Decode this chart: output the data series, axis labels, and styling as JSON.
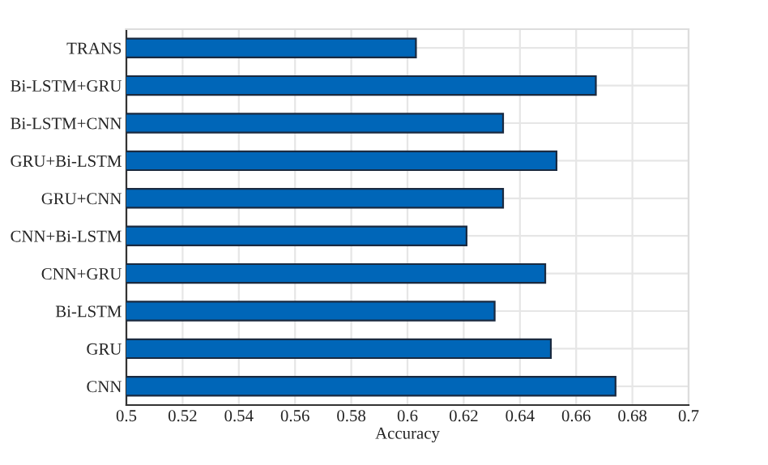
{
  "chart_data": {
    "type": "bar",
    "orientation": "horizontal",
    "xlabel": "Accuracy",
    "categories": [
      "TRANS",
      "Bi-LSTM+GRU",
      "Bi-LSTM+CNN",
      "GRU+Bi-LSTM",
      "GRU+CNN",
      "CNN+Bi-LSTM",
      "CNN+GRU",
      "Bi-LSTM",
      "GRU",
      "CNN"
    ],
    "values": [
      0.603,
      0.667,
      0.634,
      0.653,
      0.634,
      0.621,
      0.649,
      0.631,
      0.651,
      0.674
    ],
    "color": "#0066b8",
    "xlim": [
      0.5,
      0.7
    ],
    "xticks": [
      0.5,
      0.52,
      0.54,
      0.56,
      0.58,
      0.6,
      0.62,
      0.64,
      0.66,
      0.68,
      0.7
    ],
    "grid": true
  }
}
